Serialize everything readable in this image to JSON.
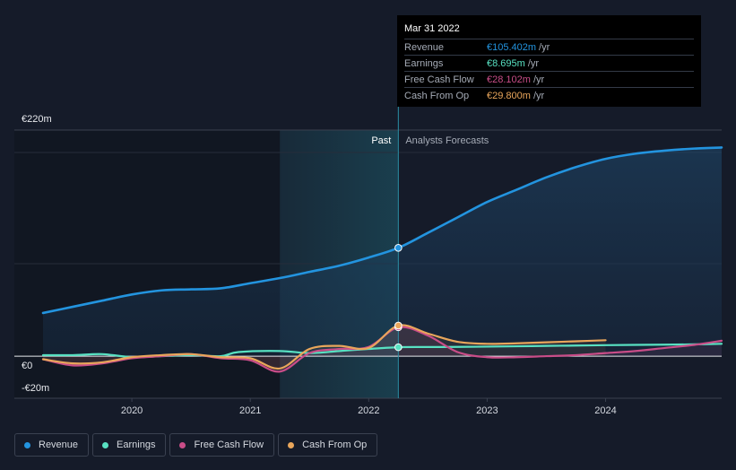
{
  "chart_data": {
    "type": "line",
    "y_ticks": [
      {
        "label": "€220m",
        "value": 220
      },
      {
        "label": "€0",
        "value": 0
      },
      {
        "label": "-€20m",
        "value": -20
      }
    ],
    "ylim": [
      -20,
      220
    ],
    "xlim": [
      2019.25,
      2024.98
    ],
    "x_ticks": [
      {
        "label": "2020",
        "value": 2020
      },
      {
        "label": "2021",
        "value": 2021
      },
      {
        "label": "2022",
        "value": 2022
      },
      {
        "label": "2023",
        "value": 2023
      },
      {
        "label": "2024",
        "value": 2024
      }
    ],
    "past_label": "Past",
    "forecast_label": "Analysts Forecasts",
    "highlight_start": 2021.25,
    "divider_x": 2022.25,
    "series": [
      {
        "name": "Revenue",
        "color": "#2394df",
        "points": [
          [
            2019.25,
            42
          ],
          [
            2019.5,
            48
          ],
          [
            2019.75,
            54
          ],
          [
            2020.0,
            60
          ],
          [
            2020.25,
            64
          ],
          [
            2020.5,
            65
          ],
          [
            2020.75,
            66
          ],
          [
            2021.0,
            71
          ],
          [
            2021.25,
            76
          ],
          [
            2021.5,
            82
          ],
          [
            2021.75,
            88
          ],
          [
            2022.0,
            96
          ],
          [
            2022.25,
            105.4
          ],
          [
            2022.5,
            120
          ],
          [
            2022.75,
            135
          ],
          [
            2023.0,
            150
          ],
          [
            2023.25,
            162
          ],
          [
            2023.5,
            174
          ],
          [
            2023.75,
            184
          ],
          [
            2024.0,
            192
          ],
          [
            2024.25,
            197
          ],
          [
            2024.5,
            200
          ],
          [
            2024.75,
            202
          ],
          [
            2024.98,
            203
          ]
        ]
      },
      {
        "name": "Earnings",
        "color": "#58e1c2",
        "points": [
          [
            2019.25,
            1
          ],
          [
            2019.5,
            1
          ],
          [
            2019.75,
            2
          ],
          [
            2020.0,
            -1
          ],
          [
            2020.25,
            0
          ],
          [
            2020.5,
            1
          ],
          [
            2020.75,
            0
          ],
          [
            2020.9,
            4
          ],
          [
            2021.25,
            5
          ],
          [
            2021.5,
            3
          ],
          [
            2021.75,
            5
          ],
          [
            2022.0,
            7
          ],
          [
            2022.25,
            8.7
          ],
          [
            2022.5,
            8.9
          ],
          [
            2022.75,
            9
          ],
          [
            2023.0,
            9.3
          ],
          [
            2023.25,
            9.6
          ],
          [
            2023.5,
            10
          ],
          [
            2023.75,
            10.3
          ],
          [
            2024.0,
            10.7
          ],
          [
            2024.25,
            11
          ],
          [
            2024.5,
            11.2
          ],
          [
            2024.75,
            11.5
          ],
          [
            2024.98,
            12
          ]
        ]
      },
      {
        "name": "Free Cash Flow",
        "color": "#c94d88",
        "points": [
          [
            2019.25,
            -3
          ],
          [
            2019.5,
            -9
          ],
          [
            2019.75,
            -7
          ],
          [
            2020.0,
            -2
          ],
          [
            2020.25,
            0
          ],
          [
            2020.5,
            2
          ],
          [
            2020.75,
            -2
          ],
          [
            2021.0,
            -4
          ],
          [
            2021.25,
            -15
          ],
          [
            2021.5,
            3
          ],
          [
            2021.75,
            7
          ],
          [
            2022.0,
            9
          ],
          [
            2022.25,
            28.1
          ],
          [
            2022.5,
            20
          ],
          [
            2022.75,
            4
          ],
          [
            2023.0,
            -1
          ],
          [
            2023.25,
            -1
          ],
          [
            2023.5,
            0
          ],
          [
            2023.75,
            1
          ],
          [
            2024.0,
            3
          ],
          [
            2024.25,
            5
          ],
          [
            2024.5,
            8
          ],
          [
            2024.75,
            11
          ],
          [
            2024.98,
            15
          ]
        ]
      },
      {
        "name": "Cash From Op",
        "color": "#e9a65b",
        "points": [
          [
            2019.25,
            -3
          ],
          [
            2019.5,
            -7
          ],
          [
            2019.75,
            -6
          ],
          [
            2020.0,
            -1
          ],
          [
            2020.25,
            1
          ],
          [
            2020.5,
            2
          ],
          [
            2020.75,
            -1
          ],
          [
            2021.0,
            -2
          ],
          [
            2021.25,
            -12
          ],
          [
            2021.5,
            7
          ],
          [
            2021.75,
            10
          ],
          [
            2022.0,
            8
          ],
          [
            2022.25,
            29.8
          ],
          [
            2022.5,
            22
          ],
          [
            2022.75,
            14
          ],
          [
            2023.0,
            12
          ],
          [
            2023.25,
            12.5
          ],
          [
            2023.5,
            13.5
          ],
          [
            2023.75,
            14.5
          ],
          [
            2024.0,
            15.5
          ]
        ]
      }
    ],
    "tooltip": {
      "date": "Mar 31 2022",
      "rows": [
        {
          "label": "Revenue",
          "value": "€105.402m",
          "unit": "/yr",
          "color": "#2394df"
        },
        {
          "label": "Earnings",
          "value": "€8.695m",
          "unit": "/yr",
          "color": "#58e1c2"
        },
        {
          "label": "Free Cash Flow",
          "value": "€28.102m",
          "unit": "/yr",
          "color": "#c94d88"
        },
        {
          "label": "Cash From Op",
          "value": "€29.800m",
          "unit": "/yr",
          "color": "#e9a65b"
        }
      ]
    }
  },
  "legend": [
    {
      "label": "Revenue",
      "color": "#2394df"
    },
    {
      "label": "Earnings",
      "color": "#58e1c2"
    },
    {
      "label": "Free Cash Flow",
      "color": "#c94d88"
    },
    {
      "label": "Cash From Op",
      "color": "#e9a65b"
    }
  ]
}
